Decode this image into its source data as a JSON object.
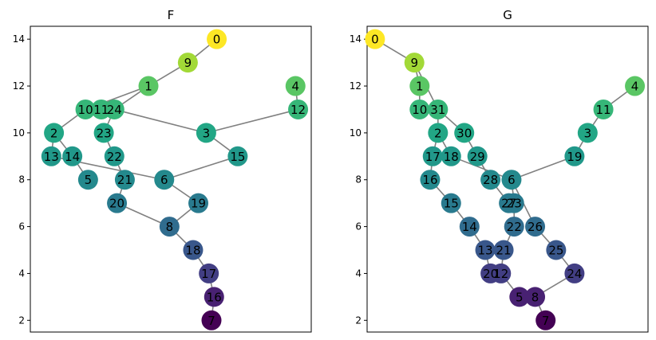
{
  "chart_data": [
    {
      "type": "network",
      "title": "F",
      "ylim": [
        1.5,
        14.55
      ],
      "xlim": [
        -0.3,
        10.4
      ],
      "yticks": [
        2,
        4,
        6,
        8,
        10,
        12,
        14
      ],
      "colormap": "viridis",
      "nodes": [
        {
          "id": "0",
          "x": 6.8,
          "y": 14.0,
          "c": 1.0
        },
        {
          "id": "9",
          "x": 5.7,
          "y": 13.0,
          "c": 0.86
        },
        {
          "id": "1",
          "x": 4.2,
          "y": 12.0,
          "c": 0.74
        },
        {
          "id": "4",
          "x": 9.8,
          "y": 12.0,
          "c": 0.74
        },
        {
          "id": "10",
          "x": 1.8,
          "y": 11.0,
          "c": 0.66
        },
        {
          "id": "11",
          "x": 2.4,
          "y": 11.0,
          "c": 0.66
        },
        {
          "id": "24",
          "x": 2.9,
          "y": 11.0,
          "c": 0.66
        },
        {
          "id": "12",
          "x": 9.9,
          "y": 11.0,
          "c": 0.66
        },
        {
          "id": "2",
          "x": 0.6,
          "y": 10.0,
          "c": 0.59
        },
        {
          "id": "23",
          "x": 2.5,
          "y": 10.0,
          "c": 0.59
        },
        {
          "id": "3",
          "x": 6.4,
          "y": 10.0,
          "c": 0.59
        },
        {
          "id": "13",
          "x": 0.5,
          "y": 9.0,
          "c": 0.53
        },
        {
          "id": "14",
          "x": 1.3,
          "y": 9.0,
          "c": 0.53
        },
        {
          "id": "22",
          "x": 2.9,
          "y": 9.0,
          "c": 0.53
        },
        {
          "id": "15",
          "x": 7.6,
          "y": 9.0,
          "c": 0.53
        },
        {
          "id": "5",
          "x": 1.9,
          "y": 8.0,
          "c": 0.47
        },
        {
          "id": "21",
          "x": 3.3,
          "y": 8.0,
          "c": 0.47
        },
        {
          "id": "6",
          "x": 4.8,
          "y": 8.0,
          "c": 0.47
        },
        {
          "id": "20",
          "x": 3.0,
          "y": 7.0,
          "c": 0.41
        },
        {
          "id": "19",
          "x": 6.1,
          "y": 7.0,
          "c": 0.41
        },
        {
          "id": "8",
          "x": 5.0,
          "y": 6.0,
          "c": 0.35
        },
        {
          "id": "18",
          "x": 5.9,
          "y": 5.0,
          "c": 0.27
        },
        {
          "id": "17",
          "x": 6.5,
          "y": 4.0,
          "c": 0.18
        },
        {
          "id": "16",
          "x": 6.7,
          "y": 3.0,
          "c": 0.09
        },
        {
          "id": "7",
          "x": 6.6,
          "y": 2.0,
          "c": 0.0
        }
      ],
      "edges": [
        [
          "0",
          "9"
        ],
        [
          "9",
          "1"
        ],
        [
          "1",
          "10"
        ],
        [
          "1",
          "24"
        ],
        [
          "24",
          "3"
        ],
        [
          "10",
          "2"
        ],
        [
          "24",
          "23"
        ],
        [
          "23",
          "22"
        ],
        [
          "22",
          "21"
        ],
        [
          "21",
          "20"
        ],
        [
          "20",
          "8"
        ],
        [
          "2",
          "13"
        ],
        [
          "2",
          "14"
        ],
        [
          "14",
          "5"
        ],
        [
          "13",
          "6"
        ],
        [
          "6",
          "15"
        ],
        [
          "6",
          "19"
        ],
        [
          "3",
          "15"
        ],
        [
          "3",
          "12"
        ],
        [
          "4",
          "12"
        ],
        [
          "8",
          "19"
        ],
        [
          "8",
          "18"
        ],
        [
          "18",
          "17"
        ],
        [
          "17",
          "16"
        ],
        [
          "16",
          "7"
        ]
      ]
    },
    {
      "type": "network",
      "title": "G",
      "ylim": [
        1.5,
        14.55
      ],
      "xlim": [
        -0.3,
        10.4
      ],
      "yticks": [
        2,
        4,
        6,
        8,
        10,
        12,
        14
      ],
      "colormap": "viridis",
      "nodes": [
        {
          "id": "0",
          "x": 0.0,
          "y": 14.0,
          "c": 1.0
        },
        {
          "id": "9",
          "x": 1.5,
          "y": 13.0,
          "c": 0.86
        },
        {
          "id": "1",
          "x": 1.7,
          "y": 12.0,
          "c": 0.74
        },
        {
          "id": "4",
          "x": 9.9,
          "y": 12.0,
          "c": 0.74
        },
        {
          "id": "10",
          "x": 1.7,
          "y": 11.0,
          "c": 0.66
        },
        {
          "id": "31",
          "x": 2.4,
          "y": 11.0,
          "c": 0.66
        },
        {
          "id": "11",
          "x": 8.7,
          "y": 11.0,
          "c": 0.66
        },
        {
          "id": "2",
          "x": 2.4,
          "y": 10.0,
          "c": 0.59
        },
        {
          "id": "30",
          "x": 3.4,
          "y": 10.0,
          "c": 0.59
        },
        {
          "id": "3",
          "x": 8.1,
          "y": 10.0,
          "c": 0.59
        },
        {
          "id": "17",
          "x": 2.2,
          "y": 9.0,
          "c": 0.53
        },
        {
          "id": "18",
          "x": 2.9,
          "y": 9.0,
          "c": 0.53
        },
        {
          "id": "29",
          "x": 3.9,
          "y": 9.0,
          "c": 0.53
        },
        {
          "id": "19",
          "x": 7.6,
          "y": 9.0,
          "c": 0.53
        },
        {
          "id": "16",
          "x": 2.1,
          "y": 8.0,
          "c": 0.47
        },
        {
          "id": "28",
          "x": 4.4,
          "y": 8.0,
          "c": 0.47
        },
        {
          "id": "6",
          "x": 5.2,
          "y": 8.0,
          "c": 0.47
        },
        {
          "id": "15",
          "x": 2.9,
          "y": 7.0,
          "c": 0.41
        },
        {
          "id": "27",
          "x": 5.1,
          "y": 7.0,
          "c": 0.41
        },
        {
          "id": "23",
          "x": 5.3,
          "y": 7.0,
          "c": 0.41
        },
        {
          "id": "14",
          "x": 3.6,
          "y": 6.0,
          "c": 0.35
        },
        {
          "id": "22",
          "x": 5.3,
          "y": 6.0,
          "c": 0.35
        },
        {
          "id": "26",
          "x": 6.1,
          "y": 6.0,
          "c": 0.35
        },
        {
          "id": "13",
          "x": 4.2,
          "y": 5.0,
          "c": 0.27
        },
        {
          "id": "21",
          "x": 4.9,
          "y": 5.0,
          "c": 0.27
        },
        {
          "id": "25",
          "x": 6.9,
          "y": 5.0,
          "c": 0.27
        },
        {
          "id": "20",
          "x": 4.4,
          "y": 4.0,
          "c": 0.18
        },
        {
          "id": "12",
          "x": 4.8,
          "y": 4.0,
          "c": 0.18
        },
        {
          "id": "24",
          "x": 7.6,
          "y": 4.0,
          "c": 0.18
        },
        {
          "id": "5",
          "x": 5.5,
          "y": 3.0,
          "c": 0.09
        },
        {
          "id": "8",
          "x": 6.1,
          "y": 3.0,
          "c": 0.09
        },
        {
          "id": "7",
          "x": 6.5,
          "y": 2.0,
          "c": 0.0
        }
      ],
      "edges": [
        [
          "0",
          "9"
        ],
        [
          "9",
          "1"
        ],
        [
          "1",
          "10"
        ],
        [
          "9",
          "31"
        ],
        [
          "31",
          "2"
        ],
        [
          "31",
          "30"
        ],
        [
          "30",
          "29"
        ],
        [
          "29",
          "28"
        ],
        [
          "2",
          "17"
        ],
        [
          "2",
          "18"
        ],
        [
          "17",
          "16"
        ],
        [
          "16",
          "15"
        ],
        [
          "15",
          "14"
        ],
        [
          "14",
          "13"
        ],
        [
          "13",
          "20"
        ],
        [
          "18",
          "6"
        ],
        [
          "6",
          "19"
        ],
        [
          "19",
          "3"
        ],
        [
          "3",
          "11"
        ],
        [
          "11",
          "4"
        ],
        [
          "6",
          "23"
        ],
        [
          "23",
          "22"
        ],
        [
          "22",
          "21"
        ],
        [
          "21",
          "12"
        ],
        [
          "12",
          "5"
        ],
        [
          "5",
          "8"
        ],
        [
          "6",
          "26"
        ],
        [
          "26",
          "25"
        ],
        [
          "25",
          "24"
        ],
        [
          "24",
          "8"
        ],
        [
          "8",
          "7"
        ],
        [
          "28",
          "27"
        ]
      ]
    }
  ]
}
